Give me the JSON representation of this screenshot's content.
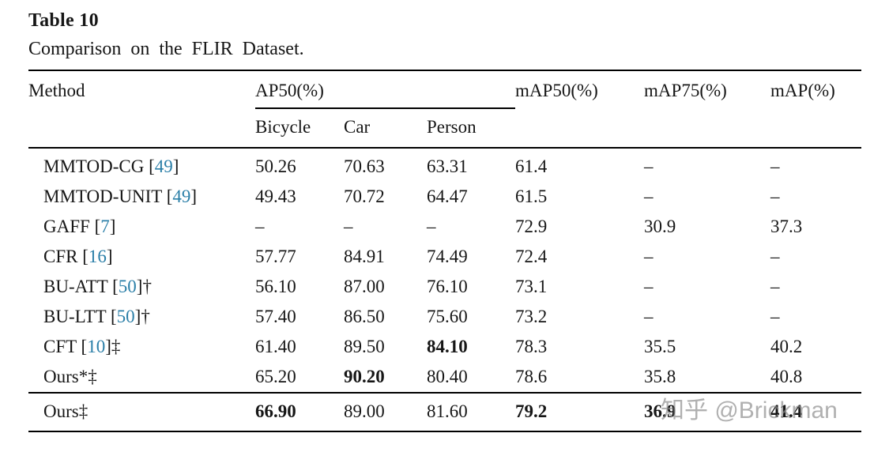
{
  "title": "Table 10",
  "caption": "Comparison on the FLIR Dataset.",
  "watermark": "知乎 @Brickman",
  "colors": {
    "citation_link": "#2b7fa8",
    "rule": "#000000"
  },
  "table": {
    "group_header": "AP50(%)",
    "columns": [
      "Method",
      "Bicycle",
      "Car",
      "Person",
      "mAP50(%)",
      "mAP75(%)",
      "mAP(%)"
    ],
    "rows": [
      {
        "method": "MMTOD-CG",
        "cite": "49",
        "mark": "",
        "values": [
          "50.26",
          "70.63",
          "63.31",
          "61.4",
          "–",
          "–"
        ],
        "bold": []
      },
      {
        "method": "MMTOD-UNIT",
        "cite": "49",
        "mark": "",
        "values": [
          "49.43",
          "70.72",
          "64.47",
          "61.5",
          "–",
          "–"
        ],
        "bold": []
      },
      {
        "method": "GAFF",
        "cite": "7",
        "mark": "",
        "values": [
          "–",
          "–",
          "–",
          "72.9",
          "30.9",
          "37.3"
        ],
        "bold": []
      },
      {
        "method": "CFR",
        "cite": "16",
        "mark": "",
        "values": [
          "57.77",
          "84.91",
          "74.49",
          "72.4",
          "–",
          "–"
        ],
        "bold": []
      },
      {
        "method": "BU-ATT",
        "cite": "50",
        "mark": "†",
        "values": [
          "56.10",
          "87.00",
          "76.10",
          "73.1",
          "–",
          "–"
        ],
        "bold": []
      },
      {
        "method": "BU-LTT",
        "cite": "50",
        "mark": "†",
        "values": [
          "57.40",
          "86.50",
          "75.60",
          "73.2",
          "–",
          "–"
        ],
        "bold": []
      },
      {
        "method": "CFT",
        "cite": "10",
        "mark": "‡",
        "values": [
          "61.40",
          "89.50",
          "84.10",
          "78.3",
          "35.5",
          "40.2"
        ],
        "bold": [
          2
        ]
      },
      {
        "method": "Ours*‡",
        "cite": null,
        "mark": "",
        "values": [
          "65.20",
          "90.20",
          "80.40",
          "78.6",
          "35.8",
          "40.8"
        ],
        "bold": [
          1
        ]
      },
      {
        "method": "Ours‡",
        "cite": null,
        "mark": "",
        "values": [
          "66.90",
          "89.00",
          "81.60",
          "79.2",
          "36.9",
          "41.4"
        ],
        "bold": [
          0,
          3,
          4,
          5
        ],
        "final": true
      }
    ]
  }
}
